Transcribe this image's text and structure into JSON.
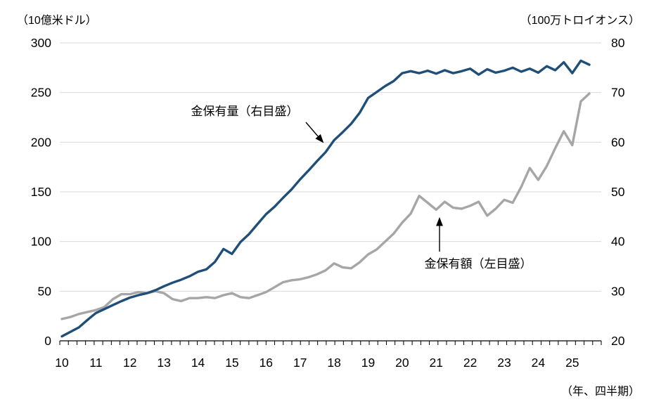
{
  "chart_data": {
    "type": "line",
    "title": "",
    "x_axis": {
      "unit_label": "（年、四半期）",
      "year_labels": [
        "10",
        "11",
        "12",
        "13",
        "14",
        "15",
        "16",
        "17",
        "18",
        "19",
        "20",
        "21",
        "22",
        "23",
        "24",
        "25"
      ],
      "tick_interval": "quarter",
      "quarter_tick_count": 64,
      "range_note": "2010Q1-2025Q3, quarterly points"
    },
    "y_left": {
      "title": "（10億米ドル）",
      "ticks": [
        0,
        50,
        100,
        150,
        200,
        250,
        300
      ],
      "tick_labels": [
        "0",
        "50",
        "100",
        "150",
        "200",
        "250",
        "300"
      ],
      "range": [
        0,
        300
      ]
    },
    "y_right": {
      "title": "（100万トロイオンス）",
      "ticks": [
        20,
        30,
        40,
        50,
        60,
        70,
        80
      ],
      "tick_labels": [
        "20",
        "30",
        "40",
        "50",
        "60",
        "70",
        "80"
      ],
      "range": [
        20,
        80
      ]
    },
    "grid": true,
    "legend_position": "none",
    "series": [
      {
        "name": "金保有額（左目盛）",
        "axis": "left",
        "color": "#a6a6a6",
        "values": [
          22,
          24,
          27,
          29,
          31,
          34,
          42,
          47,
          47,
          49,
          48,
          50,
          48,
          42,
          40,
          43,
          43,
          44,
          43,
          46,
          48,
          44,
          43,
          46,
          49,
          54,
          59,
          61,
          62,
          64,
          67,
          71,
          78,
          74,
          73,
          79,
          87,
          92,
          100,
          108,
          119,
          128,
          146,
          139,
          132,
          140,
          134,
          133,
          136,
          140,
          126,
          133,
          142,
          139,
          155,
          174,
          162,
          176,
          194,
          211,
          197,
          241,
          249
        ]
      },
      {
        "name": "金保有量（右目盛）",
        "axis": "right",
        "color": "#1f4e79",
        "values": [
          20.9,
          21.8,
          22.7,
          24.2,
          25.6,
          26.4,
          27.2,
          28.0,
          28.7,
          29.2,
          29.6,
          30.2,
          31.0,
          31.7,
          32.3,
          33.0,
          33.9,
          34.4,
          35.9,
          38.5,
          37.5,
          39.9,
          41.5,
          43.5,
          45.5,
          47.0,
          48.8,
          50.5,
          52.5,
          54.3,
          56.2,
          58.0,
          60.4,
          62.0,
          63.7,
          65.9,
          68.9,
          70.1,
          71.3,
          72.3,
          73.9,
          74.3,
          73.9,
          74.4,
          73.8,
          74.5,
          73.9,
          74.3,
          74.8,
          73.6,
          74.7,
          74.0,
          74.4,
          75.0,
          74.2,
          74.8,
          74.0,
          75.3,
          74.5,
          76.1,
          73.9,
          76.4,
          75.6
        ]
      }
    ],
    "annotations": [
      {
        "label": "金保有量（右目盛）",
        "points_to": "blue line"
      },
      {
        "label": "金保有額（左目盛）",
        "points_to": "gray line"
      }
    ],
    "colors": {
      "gold_volume_line": "#1f4e79",
      "gold_value_line": "#a6a6a6",
      "gridline": "#d9d9d9",
      "axis": "#000000",
      "text": "#000000"
    }
  }
}
